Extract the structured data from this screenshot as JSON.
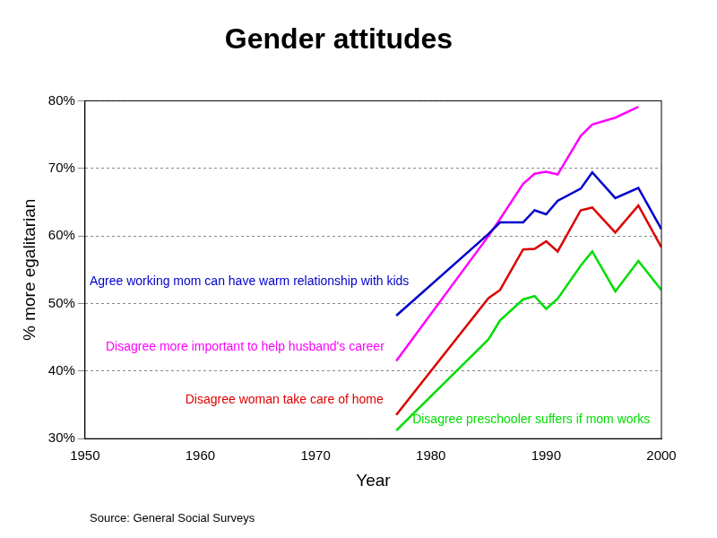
{
  "chart_data": {
    "type": "line",
    "title": "Gender attitudes",
    "x_label": "Year",
    "y_label": "% more egalitarian",
    "source": "Source: General Social Surveys",
    "x": [
      1977,
      1985,
      1986,
      1988,
      1989,
      1990,
      1991,
      1993,
      1994,
      1996,
      1998,
      2000
    ],
    "series": [
      {
        "name": "Agree working mom can have warm relationship with kids",
        "color": "#0000cc",
        "values": [
          48.2,
          60.3,
          62,
          62,
          63.8,
          63.2,
          65.2,
          67,
          69.4,
          65.6,
          67.1,
          61
        ]
      },
      {
        "name": "Disagree more important to help husband's career",
        "color": "#ff00ff",
        "values": [
          41.5,
          60,
          62.5,
          67.7,
          69.2,
          69.5,
          69.1,
          74.8,
          76.5,
          77.5,
          79.1,
          null
        ]
      },
      {
        "name": "Disagree woman take care of home",
        "color": "#dd0000",
        "values": [
          33.5,
          50.8,
          52,
          58,
          58.1,
          59.2,
          57.7,
          63.8,
          64.2,
          60.5,
          64.5,
          58.3
        ]
      },
      {
        "name": "Disagree preschooler suffers if mom works",
        "color": "#00dd00",
        "values": [
          31.2,
          44.7,
          47.5,
          50.6,
          51.1,
          49.2,
          50.7,
          55.6,
          57.7,
          51.8,
          56.3,
          52
        ]
      }
    ],
    "xlim": [
      1950,
      2000
    ],
    "xticks": [
      1950,
      1960,
      1970,
      1980,
      1990,
      2000
    ],
    "ylim": [
      30,
      80
    ],
    "yticks": [
      {
        "value": 30,
        "label": "30%"
      },
      {
        "value": 40,
        "label": "40%"
      },
      {
        "value": 50,
        "label": "50%"
      },
      {
        "value": 60,
        "label": "60%"
      },
      {
        "value": 70,
        "label": "70%"
      },
      {
        "value": 80,
        "label": "80%"
      }
    ],
    "grid": true
  }
}
